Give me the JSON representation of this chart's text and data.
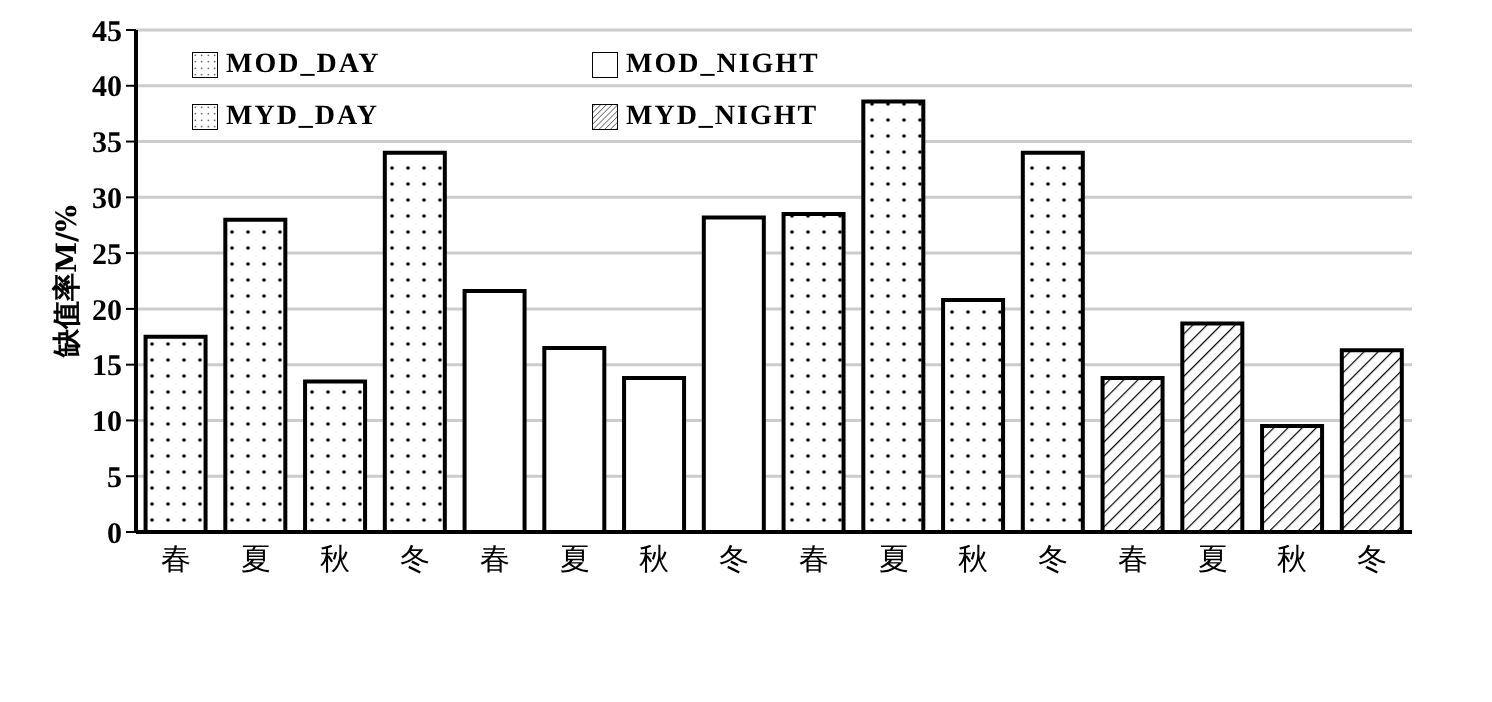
{
  "chart_data": {
    "type": "bar",
    "categories": [
      "春",
      "夏",
      "秋",
      "冬",
      "春",
      "夏",
      "秋",
      "冬",
      "春",
      "夏",
      "秋",
      "冬",
      "春",
      "夏",
      "秋",
      "冬"
    ],
    "series": [
      {
        "name": "MOD_DAY",
        "color": "#000000",
        "values": [
          17.5,
          28,
          13.5,
          34,
          null,
          null,
          null,
          null,
          null,
          null,
          null,
          null,
          null,
          null,
          null,
          null
        ]
      },
      {
        "name": "MOD_NIGHT",
        "color": "#000000",
        "values": [
          null,
          null,
          null,
          null,
          21.6,
          16.5,
          13.8,
          28.2,
          null,
          null,
          null,
          null,
          null,
          null,
          null,
          null
        ]
      },
      {
        "name": "MYD_DAY",
        "color": "#000000",
        "values": [
          null,
          null,
          null,
          null,
          null,
          null,
          null,
          null,
          28.5,
          38.6,
          20.8,
          34,
          null,
          null,
          null,
          null
        ]
      },
      {
        "name": "MYD_NIGHT",
        "color": "#000000",
        "values": [
          null,
          null,
          null,
          null,
          null,
          null,
          null,
          null,
          null,
          null,
          null,
          null,
          13.8,
          18.7,
          9.5,
          16.3
        ]
      }
    ],
    "ylabel": "缺值率M/%",
    "ylim": [
      0,
      45
    ],
    "yticks": [
      0,
      5,
      10,
      15,
      20,
      25,
      30,
      35,
      40,
      45
    ],
    "grid": "y",
    "legend": "top left"
  }
}
